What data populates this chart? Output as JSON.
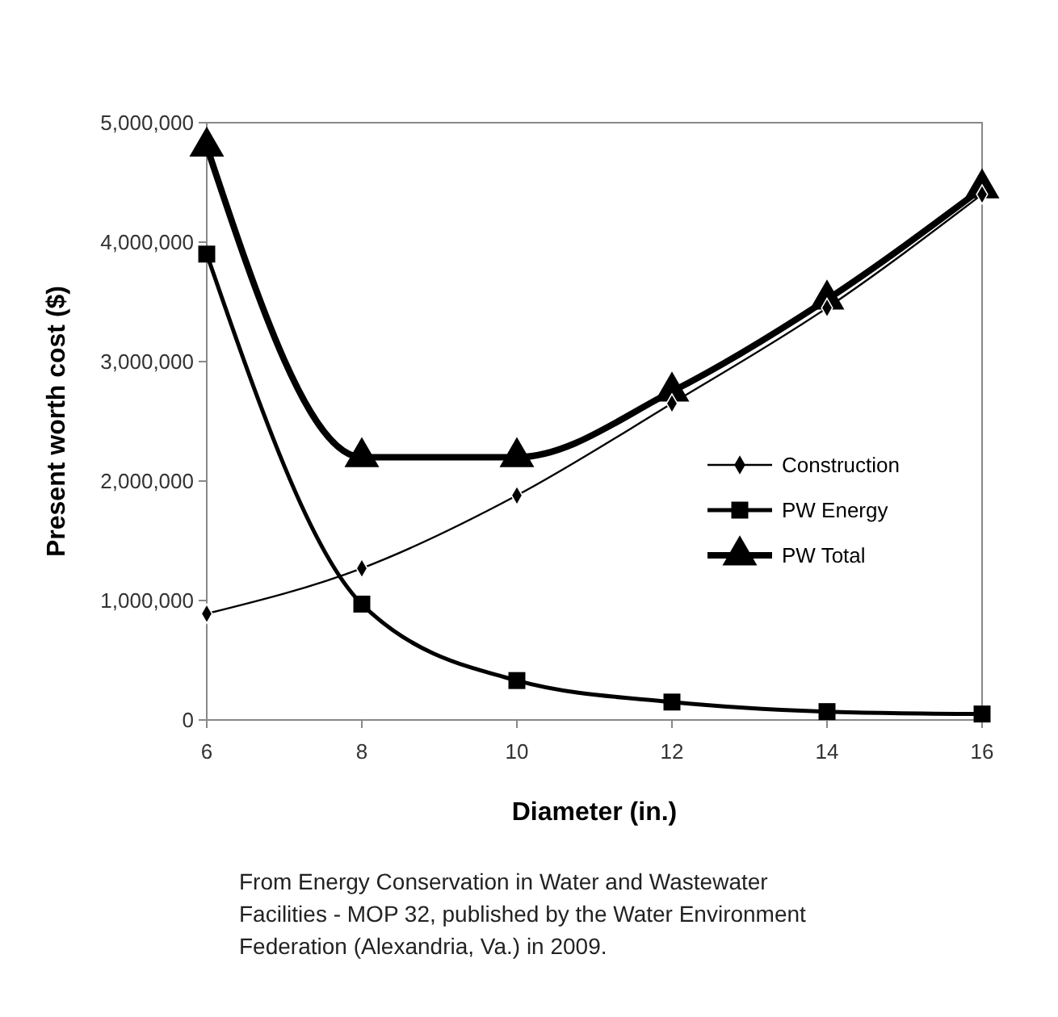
{
  "chart_data": {
    "type": "line",
    "xlabel": "Diameter (in.)",
    "ylabel": "Present worth cost ($)",
    "x": [
      6,
      8,
      10,
      12,
      14,
      16
    ],
    "series": [
      {
        "name": "Construction",
        "color": "#000000",
        "marker": "diamond",
        "values": [
          890000,
          1270000,
          1880000,
          2650000,
          3450000,
          4400000
        ]
      },
      {
        "name": "PW Energy",
        "color": "#000000",
        "marker": "square",
        "values": [
          3900000,
          970000,
          330000,
          150000,
          70000,
          50000
        ]
      },
      {
        "name": "PW Total",
        "color": "#000000",
        "marker": "triangle",
        "values": [
          4800000,
          2200000,
          2200000,
          2750000,
          3520000,
          4450000
        ]
      }
    ],
    "xlim": [
      6,
      16
    ],
    "xticks": [
      6,
      8,
      10,
      12,
      14,
      16
    ],
    "ylim": [
      0,
      5000000
    ],
    "yticks": [
      {
        "value": 0,
        "label": "0"
      },
      {
        "value": 1000000,
        "label": "1,000,000"
      },
      {
        "value": 2000000,
        "label": "2,000,000"
      },
      {
        "value": 3000000,
        "label": "3,000,000"
      },
      {
        "value": 4000000,
        "label": "4,000,000"
      },
      {
        "value": 5000000,
        "label": "5,000,000"
      }
    ],
    "legend": "right",
    "annotations": [
      "From Energy Conservation in Water and Wastewater Facilities - MOP 32, published by the Water Environment Federation (Alexandria, Va.) in 2009."
    ]
  }
}
